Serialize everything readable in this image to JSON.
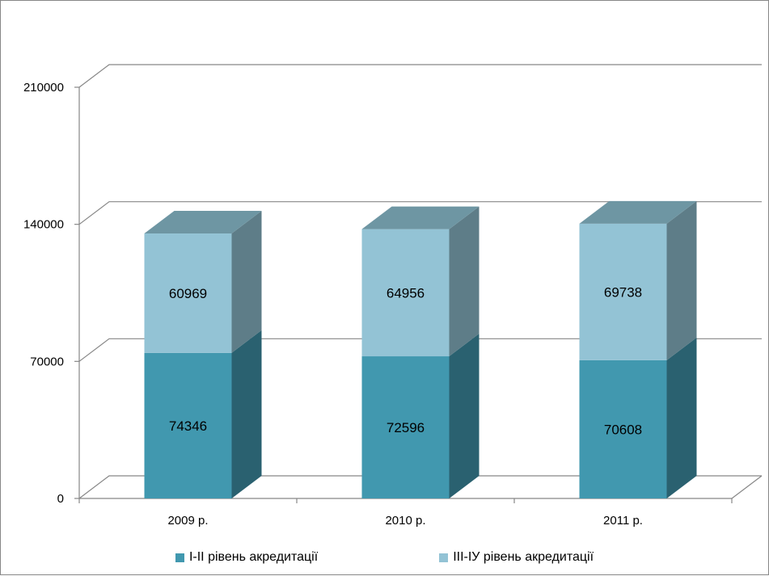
{
  "chart_data": {
    "type": "bar",
    "stacked": true,
    "three_d": true,
    "categories": [
      "2009 р.",
      "2010 р.",
      "2011 р."
    ],
    "series": [
      {
        "name": "I-II рівень акредитації",
        "values": [
          74346,
          72596,
          70608
        ],
        "color": "#4198AF",
        "side_color": "#2A6170"
      },
      {
        "name": "III-IУ рівень акредитації",
        "values": [
          60969,
          64956,
          69738
        ],
        "color": "#93C3D5",
        "side_color": "#5E7D88"
      }
    ],
    "yticks": [
      "0",
      "70000",
      "140000",
      "210000"
    ],
    "ylim": [
      0,
      210000
    ],
    "grid": true,
    "legend_position": "bottom"
  }
}
